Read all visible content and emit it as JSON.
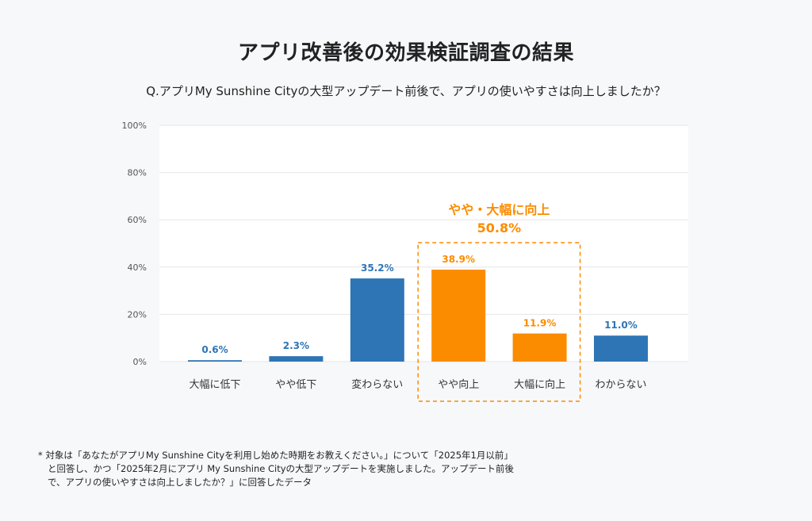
{
  "chart_data": {
    "type": "bar",
    "title": "アプリ改善後の効果検証調査の結果",
    "subtitle": "Q.アプリMy Sunshine Cityの大型アップデート前後で、アプリの使いやすさは向上しましたか？",
    "categories": [
      "大幅に低下",
      "やや低下",
      "変わらない",
      "やや向上",
      "大幅に向上",
      "わからない"
    ],
    "values": [
      0.6,
      2.3,
      35.2,
      38.9,
      11.9,
      11.0
    ],
    "value_labels": [
      "0.6%",
      "2.3%",
      "35.2%",
      "38.9%",
      "11.9%",
      "11.0%"
    ],
    "highlighted": [
      false,
      false,
      false,
      true,
      true,
      false
    ],
    "ylim": [
      0,
      100
    ],
    "yticks": [
      0,
      20,
      40,
      60,
      80,
      100
    ],
    "ytick_labels": [
      "0%",
      "20%",
      "40%",
      "60%",
      "80%",
      "100%"
    ],
    "grid": true,
    "xlabel": "",
    "ylabel": "",
    "annotation": {
      "label": "やや・大幅に向上",
      "value": "50.8%",
      "covers_categories": [
        "やや向上",
        "大幅に向上"
      ]
    },
    "colors": {
      "base": "#2e75b6",
      "highlight": "#fb8c00",
      "grid": "#e6e6e6",
      "plot_bg": "#ffffff",
      "axis_text": "#555555"
    }
  },
  "footnote": {
    "lines": [
      "* 対象は「あなたがアプリMy Sunshine Cityを利用し始めた時期をお教えください。」について「2025年1月以前」",
      "と回答し、かつ「2025年2月にアプリ My Sunshine Cityの大型アップデートを実施しました。アップデート前後",
      "で、アプリの使いやすさは向上しましたか？」に回答したデータ"
    ]
  }
}
